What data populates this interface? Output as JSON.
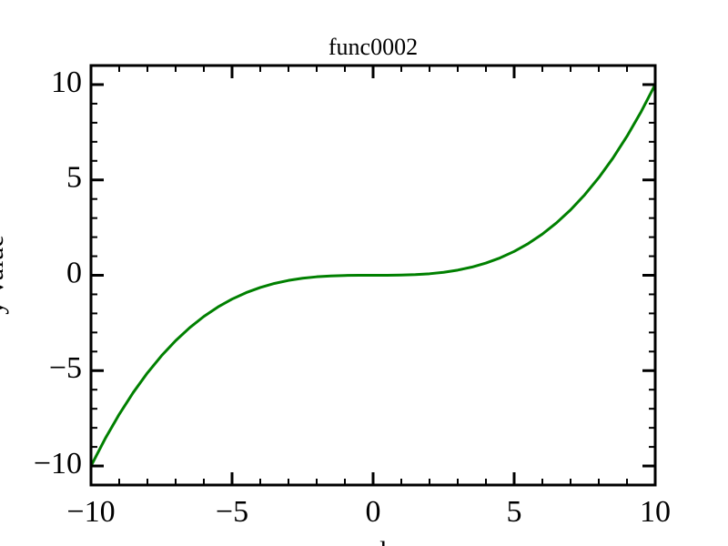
{
  "chart_data": {
    "type": "line",
    "title": "func0002",
    "x_label": "x value",
    "y_label": "y value",
    "x": [
      -10,
      -9.5,
      -9,
      -8.5,
      -8,
      -7.5,
      -7,
      -6.5,
      -6,
      -5.5,
      -5,
      -4.5,
      -4,
      -3.5,
      -3,
      -2.5,
      -2,
      -1.5,
      -1,
      -0.5,
      0,
      0.5,
      1,
      1.5,
      2,
      2.5,
      3,
      3.5,
      4,
      4.5,
      5,
      5.5,
      6,
      6.5,
      7,
      7.5,
      8,
      8.5,
      9,
      9.5,
      10
    ],
    "series": [
      {
        "name": "func0002",
        "color": "#008000",
        "values": [
          -10,
          -8.57375,
          -7.29,
          -6.14125,
          -5.12,
          -4.21875,
          -3.43,
          -2.74625,
          -2.16,
          -1.66375,
          -1.25,
          -0.91125,
          -0.64,
          -0.42875,
          -0.27,
          -0.15625,
          -0.08,
          -0.03375,
          -0.01,
          -0.00125,
          0,
          0.00125,
          0.01,
          0.03375,
          0.08,
          0.15625,
          0.27,
          0.42875,
          0.64,
          0.91125,
          1.25,
          1.66375,
          2.16,
          2.74625,
          3.43,
          4.21875,
          5.12,
          6.14125,
          7.29,
          8.57375,
          10
        ]
      }
    ],
    "xlim": [
      -10,
      10
    ],
    "ylim": [
      -11,
      11
    ],
    "xticks": [
      {
        "value": -10,
        "label": "−10"
      },
      {
        "value": -5,
        "label": "−5"
      },
      0,
      5,
      10
    ],
    "yticks": [
      {
        "value": -10,
        "label": "−10"
      },
      {
        "value": -5,
        "label": "−5"
      },
      0,
      5,
      10
    ],
    "xminorticks": [
      -9,
      -8,
      -7,
      -6,
      -4,
      -3,
      -2,
      -1,
      1,
      2,
      3,
      4,
      6,
      7,
      8,
      9
    ],
    "yminorticks": [
      -11,
      -9,
      -8,
      -7,
      -6,
      -4,
      -3,
      -2,
      -1,
      1,
      2,
      3,
      4,
      6,
      7,
      8,
      9,
      11
    ],
    "grid": false
  }
}
